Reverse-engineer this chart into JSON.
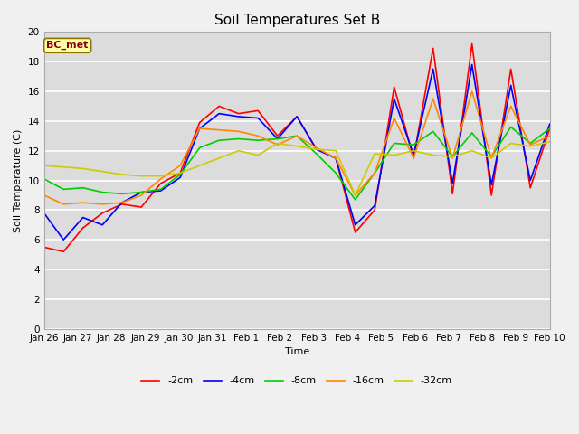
{
  "title": "Soil Temperatures Set B",
  "xlabel": "Time",
  "ylabel": "Soil Temperature (C)",
  "ylim": [
    0,
    20
  ],
  "yticks": [
    0,
    2,
    4,
    6,
    8,
    10,
    12,
    14,
    16,
    18,
    20
  ],
  "x_labels": [
    "Jan 26",
    "Jan 27",
    "Jan 28",
    "Jan 29",
    "Jan 30",
    "Jan 31",
    "Feb 1",
    "Feb 2",
    "Feb 3",
    "Feb 4",
    "Feb 5",
    "Feb 6",
    "Feb 7",
    "Feb 8",
    "Feb 9",
    "Feb 10"
  ],
  "plot_bg_color": "#dcdcdc",
  "fig_bg_color": "#f0f0f0",
  "grid_color": "#ffffff",
  "annotation_text": "BC_met",
  "annotation_color": "#8b0000",
  "annotation_bg": "#ffffaa",
  "annotation_edge": "#8b7300",
  "series": {
    "-2cm": {
      "color": "#ff0000",
      "values": [
        5.5,
        5.2,
        6.8,
        7.8,
        8.4,
        8.2,
        9.8,
        10.5,
        13.9,
        15.0,
        14.5,
        14.7,
        13.0,
        14.3,
        12.1,
        11.5,
        6.5,
        8.0,
        16.3,
        11.5,
        18.9,
        9.1,
        19.2,
        9.0,
        17.5,
        9.5,
        13.5
      ]
    },
    "-4cm": {
      "color": "#0000ff",
      "values": [
        7.8,
        6.0,
        7.5,
        7.0,
        8.5,
        9.2,
        9.3,
        10.2,
        13.5,
        14.5,
        14.3,
        14.2,
        12.8,
        14.3,
        12.1,
        11.5,
        7.0,
        8.3,
        15.5,
        11.7,
        17.5,
        9.8,
        17.8,
        9.7,
        16.4,
        10.0,
        13.8
      ]
    },
    "-8cm": {
      "color": "#00cc00",
      "values": [
        10.1,
        9.4,
        9.5,
        9.2,
        9.1,
        9.2,
        9.4,
        10.4,
        12.2,
        12.7,
        12.8,
        12.7,
        12.8,
        13.0,
        11.8,
        10.5,
        8.7,
        10.5,
        12.5,
        12.4,
        13.3,
        11.6,
        13.2,
        11.6,
        13.6,
        12.5,
        13.5
      ]
    },
    "-16cm": {
      "color": "#ff8800",
      "values": [
        9.0,
        8.4,
        8.5,
        8.4,
        8.5,
        9.0,
        10.1,
        11.0,
        13.5,
        13.4,
        13.3,
        13.0,
        12.4,
        13.0,
        12.2,
        11.5,
        9.0,
        10.5,
        14.2,
        11.5,
        15.5,
        11.5,
        16.0,
        11.5,
        15.0,
        12.4,
        13.0
      ]
    },
    "-32cm": {
      "color": "#cccc00",
      "values": [
        11.0,
        10.9,
        10.8,
        10.6,
        10.4,
        10.3,
        10.3,
        10.5,
        11.0,
        11.5,
        12.0,
        11.7,
        12.5,
        12.3,
        12.1,
        12.0,
        9.0,
        11.8,
        11.7,
        12.0,
        11.7,
        11.6,
        12.0,
        11.5,
        12.5,
        12.3,
        12.6
      ]
    }
  },
  "series_order": [
    "-2cm",
    "-4cm",
    "-8cm",
    "-16cm",
    "-32cm"
  ],
  "linewidth": 1.2,
  "title_fontsize": 11,
  "axis_fontsize": 8,
  "tick_fontsize": 7.5
}
